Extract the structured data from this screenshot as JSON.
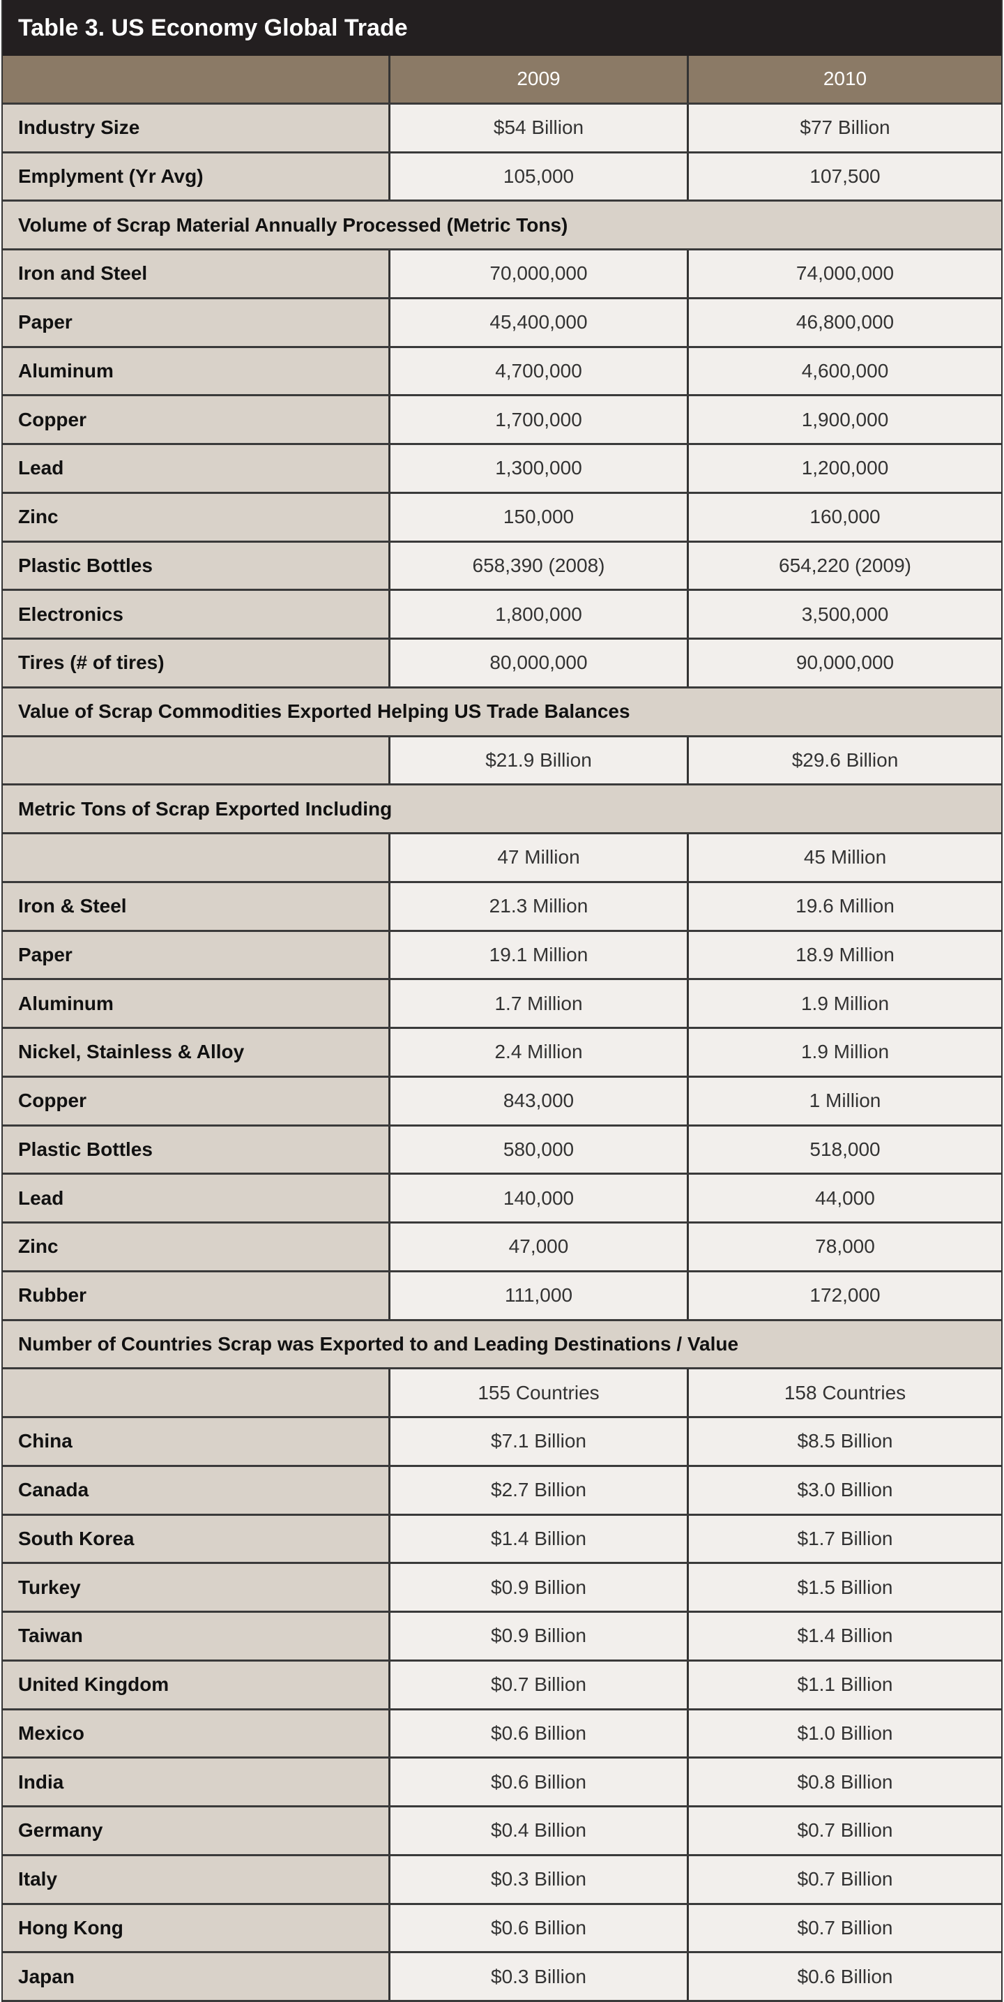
{
  "title": "Table 3. US Economy Global Trade",
  "colors": {
    "title_bg": "#231f20",
    "header_bg": "#8b7a66",
    "label_bg": "#d9d2c9",
    "value_bg": "#f2efec"
  },
  "columns": [
    "",
    "2009",
    "2010"
  ],
  "rows": [
    {
      "label": "Industry Size",
      "v2009": "$54 Billion",
      "v2010": "$77 Billion"
    },
    {
      "label": "Emplyment (Yr Avg)",
      "v2009": "105,000",
      "v2010": "107,500"
    },
    {
      "section": "Volume of Scrap Material Annually Processed (Metric Tons)"
    },
    {
      "label": "Iron and Steel",
      "v2009": "70,000,000",
      "v2010": "74,000,000"
    },
    {
      "label": "Paper",
      "v2009": "45,400,000",
      "v2010": "46,800,000"
    },
    {
      "label": "Aluminum",
      "v2009": "4,700,000",
      "v2010": "4,600,000"
    },
    {
      "label": "Copper",
      "v2009": "1,700,000",
      "v2010": "1,900,000"
    },
    {
      "label": "Lead",
      "v2009": "1,300,000",
      "v2010": "1,200,000"
    },
    {
      "label": "Zinc",
      "v2009": "150,000",
      "v2010": "160,000"
    },
    {
      "label": "Plastic Bottles",
      "v2009": "658,390 (2008)",
      "v2010": "654,220 (2009)"
    },
    {
      "label": "Electronics",
      "v2009": "1,800,000",
      "v2010": "3,500,000"
    },
    {
      "label": "Tires (# of tires)",
      "v2009": "80,000,000",
      "v2010": "90,000,000"
    },
    {
      "section": "Value of Scrap Commodities Exported Helping US Trade Balances"
    },
    {
      "label": "",
      "v2009": "$21.9 Billion",
      "v2010": "$29.6 Billion"
    },
    {
      "section": "Metric Tons of Scrap Exported Including"
    },
    {
      "label": "",
      "v2009": "47 Million",
      "v2010": "45 Million"
    },
    {
      "label": "Iron & Steel",
      "v2009": "21.3 Million",
      "v2010": "19.6 Million"
    },
    {
      "label": "Paper",
      "v2009": "19.1 Million",
      "v2010": "18.9 Million"
    },
    {
      "label": "Aluminum",
      "v2009": "1.7 Million",
      "v2010": "1.9 Million"
    },
    {
      "label": "Nickel, Stainless & Alloy",
      "v2009": "2.4 Million",
      "v2010": "1.9 Million"
    },
    {
      "label": "Copper",
      "v2009": "843,000",
      "v2010": "1 Million"
    },
    {
      "label": "Plastic Bottles",
      "v2009": "580,000",
      "v2010": "518,000"
    },
    {
      "label": "Lead",
      "v2009": "140,000",
      "v2010": "44,000"
    },
    {
      "label": "Zinc",
      "v2009": "47,000",
      "v2010": "78,000"
    },
    {
      "label": "Rubber",
      "v2009": "111,000",
      "v2010": "172,000"
    },
    {
      "section": "Number of Countries Scrap was Exported to and Leading Destinations / Value"
    },
    {
      "label": "",
      "v2009": "155 Countries",
      "v2010": "158 Countries"
    },
    {
      "label": "China",
      "v2009": "$7.1 Billion",
      "v2010": "$8.5 Billion"
    },
    {
      "label": "Canada",
      "v2009": "$2.7 Billion",
      "v2010": "$3.0 Billion"
    },
    {
      "label": "South Korea",
      "v2009": "$1.4 Billion",
      "v2010": "$1.7 Billion"
    },
    {
      "label": "Turkey",
      "v2009": "$0.9 Billion",
      "v2010": "$1.5 Billion"
    },
    {
      "label": "Taiwan",
      "v2009": "$0.9 Billion",
      "v2010": "$1.4 Billion"
    },
    {
      "label": "United Kingdom",
      "v2009": "$0.7 Billion",
      "v2010": "$1.1 Billion"
    },
    {
      "label": "Mexico",
      "v2009": "$0.6 Billion",
      "v2010": "$1.0 Billion"
    },
    {
      "label": "India",
      "v2009": "$0.6 Billion",
      "v2010": "$0.8 Billion"
    },
    {
      "label": "Germany",
      "v2009": "$0.4 Billion",
      "v2010": "$0.7 Billion"
    },
    {
      "label": "Italy",
      "v2009": "$0.3 Billion",
      "v2010": "$0.7 Billion"
    },
    {
      "label": "Hong Kong",
      "v2009": "$0.6 Billion",
      "v2010": "$0.7 Billion"
    },
    {
      "label": "Japan",
      "v2009": "$0.3 Billion",
      "v2010": "$0.6 Billion"
    }
  ]
}
